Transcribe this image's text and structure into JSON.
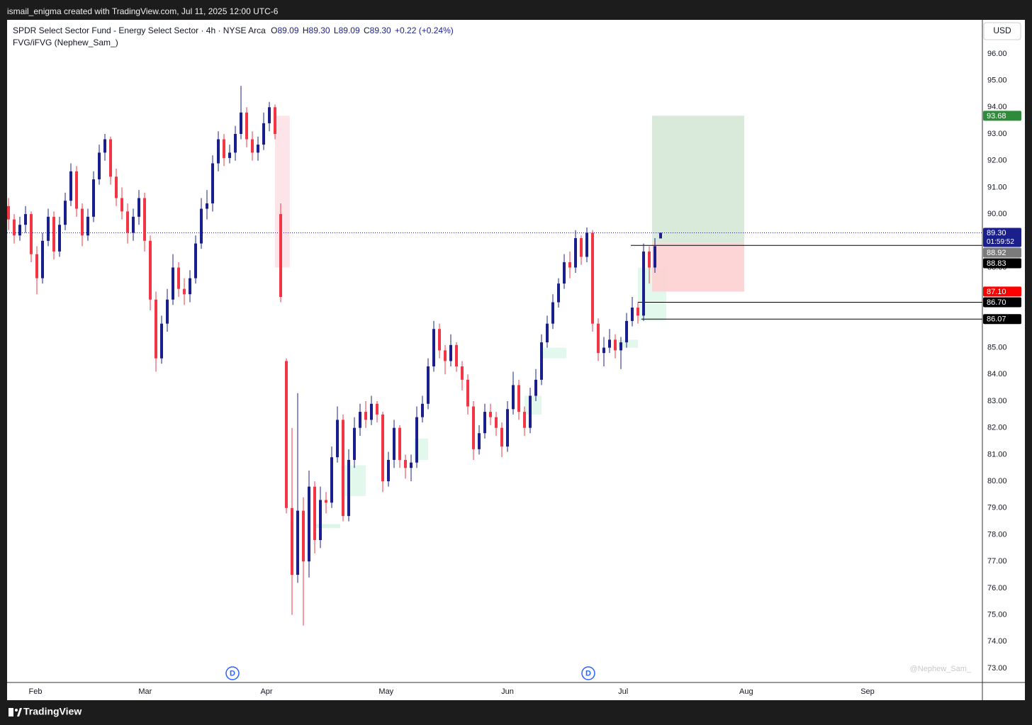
{
  "topbar": {
    "text": "ismail_enigma created with TradingView.com, Jul 11, 2025 12:00 UTC-6"
  },
  "footer": {
    "brand": "TradingView"
  },
  "chart_data": {
    "type": "candlestick",
    "title": "SPDR Select Sector Fund - Energy Select Sector · 4h · NYSE Arca",
    "ohlc_names": [
      "O",
      "H",
      "L",
      "C"
    ],
    "ohlc_values": [
      "89.09",
      "89.30",
      "89.09",
      "89.30"
    ],
    "change": "+0.22 (+0.24%)",
    "indicator": "FVG/iFVG (Nephew_Sam_)",
    "currency": "USD",
    "watermark": "@Nephew_Sam_",
    "up_color": "#1a1f8c",
    "down_color": "#f23645",
    "open": [
      90.3,
      89.8,
      89.2,
      89.6,
      90.0,
      88.5,
      87.6,
      89.0,
      89.9,
      88.6,
      89.6,
      90.5,
      91.6,
      90.2,
      89.2,
      89.9,
      91.3,
      92.3,
      92.8,
      91.4,
      90.6,
      90.1,
      89.3,
      89.9,
      90.6,
      89.0,
      86.8,
      84.6,
      85.9,
      86.8,
      88.0,
      87.2,
      87.0,
      87.6,
      88.9,
      90.2,
      90.4,
      91.9,
      92.8,
      92.1,
      92.3,
      93.0,
      93.8,
      92.8,
      92.3,
      92.6,
      93.4,
      94.0,
      90.0,
      84.5,
      79.0,
      76.5,
      78.9,
      77.0,
      79.8,
      77.8,
      79.3,
      79.2,
      80.9,
      82.3,
      78.7,
      80.8,
      82.0,
      82.6,
      82.3,
      82.9,
      82.5,
      80.0,
      80.8,
      82.0,
      80.8,
      80.5,
      80.7,
      82.4,
      82.9,
      84.3,
      85.7,
      84.9,
      84.5,
      85.1,
      84.3,
      83.8,
      82.8,
      81.2,
      81.8,
      82.6,
      82.4,
      82.0,
      81.3,
      82.7,
      83.6,
      82.6,
      82.0,
      83.2,
      83.8,
      85.2,
      85.9,
      86.7,
      87.4,
      88.2,
      88.0,
      89.1,
      88.4,
      89.3,
      85.9,
      84.8,
      85.0,
      85.3,
      84.9,
      85.2,
      86.0,
      86.5,
      86.2,
      88.6,
      88.0,
      89.09
    ],
    "high": [
      90.6,
      90.0,
      89.9,
      90.3,
      90.1,
      88.8,
      89.3,
      90.2,
      90.1,
      89.9,
      90.8,
      91.9,
      91.8,
      90.4,
      90.2,
      91.6,
      92.6,
      93.0,
      92.9,
      91.7,
      91.0,
      90.4,
      90.2,
      90.9,
      90.8,
      89.2,
      87.1,
      86.2,
      87.2,
      88.5,
      88.2,
      87.6,
      87.9,
      89.2,
      90.6,
      90.9,
      92.2,
      93.1,
      93.0,
      92.6,
      93.3,
      94.8,
      94.0,
      93.1,
      92.9,
      93.8,
      94.2,
      94.1,
      90.4,
      84.6,
      82.0,
      83.3,
      79.4,
      80.4,
      80.0,
      79.8,
      79.6,
      81.3,
      82.8,
      82.5,
      81.2,
      82.4,
      82.9,
      83.0,
      83.2,
      83.0,
      82.6,
      81.1,
      82.3,
      82.1,
      81.0,
      81.0,
      82.8,
      83.2,
      84.6,
      86.0,
      85.9,
      85.1,
      85.5,
      85.2,
      84.5,
      84.0,
      83.0,
      82.1,
      82.9,
      82.9,
      82.6,
      82.2,
      83.0,
      84.1,
      83.8,
      82.8,
      83.5,
      84.2,
      85.5,
      86.2,
      87.0,
      87.6,
      88.5,
      88.6,
      89.4,
      89.2,
      89.5,
      89.4,
      86.1,
      85.4,
      85.7,
      85.5,
      85.4,
      86.3,
      86.9,
      86.7,
      88.9,
      88.8,
      89.1,
      89.3
    ],
    "low": [
      89.4,
      88.9,
      89.0,
      89.3,
      88.2,
      87.0,
      87.4,
      88.8,
      88.3,
      88.4,
      89.4,
      90.3,
      89.9,
      88.8,
      89.0,
      89.7,
      91.1,
      92.0,
      91.1,
      90.3,
      89.8,
      88.9,
      89.0,
      89.6,
      88.6,
      86.4,
      84.1,
      84.4,
      85.6,
      86.6,
      86.9,
      86.6,
      86.7,
      87.4,
      88.7,
      89.8,
      90.1,
      91.6,
      91.8,
      91.9,
      92.0,
      92.8,
      92.5,
      92.0,
      92.0,
      92.4,
      93.1,
      92.8,
      86.7,
      78.8,
      75.0,
      76.2,
      74.6,
      76.4,
      77.3,
      77.5,
      78.8,
      79.0,
      80.7,
      78.5,
      78.5,
      80.5,
      81.7,
      82.0,
      82.1,
      82.2,
      79.6,
      79.8,
      80.5,
      80.5,
      80.1,
      80.0,
      80.5,
      82.2,
      82.7,
      84.1,
      84.6,
      84.0,
      84.3,
      84.1,
      83.4,
      82.5,
      80.8,
      81.0,
      81.6,
      82.1,
      81.7,
      80.9,
      81.1,
      82.5,
      82.3,
      81.7,
      81.8,
      83.0,
      83.6,
      85.0,
      85.7,
      86.5,
      87.2,
      87.6,
      87.8,
      88.1,
      88.2,
      85.6,
      84.5,
      84.3,
      84.8,
      84.6,
      84.2,
      85.0,
      85.8,
      85.9,
      86.0,
      87.4,
      87.8,
      89.09
    ],
    "close": [
      89.8,
      89.2,
      89.6,
      90.0,
      88.5,
      87.6,
      89.0,
      89.9,
      88.6,
      89.6,
      90.5,
      91.6,
      90.2,
      89.2,
      89.9,
      91.3,
      92.3,
      92.8,
      91.4,
      90.6,
      90.1,
      89.3,
      89.9,
      90.6,
      89.0,
      86.8,
      84.6,
      85.9,
      86.8,
      88.0,
      87.2,
      87.0,
      87.6,
      88.9,
      90.2,
      90.4,
      91.9,
      92.8,
      92.1,
      92.3,
      93.0,
      93.8,
      92.8,
      92.3,
      92.6,
      93.4,
      94.0,
      93.0,
      86.9,
      79.0,
      76.5,
      78.9,
      77.0,
      79.8,
      77.8,
      79.3,
      79.2,
      80.9,
      82.3,
      78.7,
      80.8,
      82.0,
      82.6,
      82.3,
      82.9,
      82.5,
      80.0,
      80.8,
      82.0,
      80.8,
      80.5,
      80.7,
      82.4,
      82.9,
      84.3,
      85.7,
      84.9,
      84.5,
      85.1,
      84.3,
      83.8,
      82.8,
      81.2,
      81.8,
      82.6,
      82.4,
      82.0,
      81.3,
      82.7,
      83.6,
      82.6,
      82.0,
      83.2,
      83.8,
      85.2,
      85.9,
      86.7,
      87.4,
      88.2,
      88.0,
      89.1,
      88.4,
      89.3,
      85.9,
      84.8,
      85.0,
      85.3,
      84.9,
      85.2,
      86.0,
      86.5,
      86.2,
      88.6,
      88.0,
      88.8,
      89.3
    ],
    "xlim": [
      -0.25,
      171.75
    ],
    "xticks": [
      {
        "value": 4.75,
        "label": "Feb"
      },
      {
        "value": 24.1,
        "label": "Mar"
      },
      {
        "value": 45.5,
        "label": "Apr"
      },
      {
        "value": 66.6,
        "label": "May"
      },
      {
        "value": 88,
        "label": "Jun"
      },
      {
        "value": 108.4,
        "label": "Jul"
      },
      {
        "value": 130.1,
        "label": "Aug"
      },
      {
        "value": 151.5,
        "label": "Sep"
      }
    ],
    "ylim": [
      72.47,
      97.27
    ],
    "yticks": [
      {
        "value": 96,
        "label": "96.00"
      },
      {
        "value": 95,
        "label": "95.00"
      },
      {
        "value": 94,
        "label": "94.00"
      },
      {
        "value": 93,
        "label": "93.00"
      },
      {
        "value": 92,
        "label": "92.00"
      },
      {
        "value": 91,
        "label": "91.00"
      },
      {
        "value": 90,
        "label": "90.00"
      },
      {
        "value": 89,
        "label": "89.00"
      },
      {
        "value": 88,
        "label": "88.00"
      },
      {
        "value": 87,
        "label": "87.00"
      },
      {
        "value": 86,
        "label": "86.00"
      },
      {
        "value": 85,
        "label": "85.00"
      },
      {
        "value": 84,
        "label": "84.00"
      },
      {
        "value": 83,
        "label": "83.00"
      },
      {
        "value": 82,
        "label": "82.00"
      },
      {
        "value": 81,
        "label": "81.00"
      },
      {
        "value": 80,
        "label": "80.00"
      },
      {
        "value": 79,
        "label": "79.00"
      },
      {
        "value": 78,
        "label": "78.00"
      },
      {
        "value": 77,
        "label": "77.00"
      },
      {
        "value": 76,
        "label": "76.00"
      },
      {
        "value": 75,
        "label": "75.00"
      },
      {
        "value": 74,
        "label": "74.00"
      },
      {
        "value": 73,
        "label": "73.00"
      }
    ],
    "last_price_line": {
      "value": 89.3,
      "color": "#1a1f8c"
    },
    "fvg_zones": [
      {
        "start": 47,
        "end": 49.6,
        "top": 93.68,
        "bottom": 88.0,
        "color": "#fde4e8"
      },
      {
        "start": 54,
        "end": 58.5,
        "top": 78.4,
        "bottom": 78.25,
        "color": "#dcf5e8"
      },
      {
        "start": 58.6,
        "end": 63,
        "top": 80.6,
        "bottom": 79.45,
        "color": "#e3f8ec"
      },
      {
        "start": 71.5,
        "end": 74,
        "top": 81.6,
        "bottom": 80.8,
        "color": "#e3f8ec"
      },
      {
        "start": 91,
        "end": 94,
        "top": 83.2,
        "bottom": 82.5,
        "color": "#e3f8ec"
      },
      {
        "start": 94,
        "end": 98.4,
        "top": 85.0,
        "bottom": 84.6,
        "color": "#e3f8ec"
      },
      {
        "start": 107.5,
        "end": 111,
        "top": 85.3,
        "bottom": 85.0,
        "color": "#e3f8ec"
      },
      {
        "start": 111,
        "end": 116,
        "top": 88.0,
        "bottom": 86.0,
        "color": "#e3f8ec"
      }
    ],
    "position": {
      "start": 113.5,
      "end": 129.75,
      "target": 93.68,
      "entry": 88.92,
      "stop": 87.1,
      "profit_color": "#d5e8d6",
      "loss_color": "#fdd0d2"
    },
    "rays": [
      {
        "start": 109.75,
        "value": 88.83
      },
      {
        "start": 111,
        "value": 86.7
      },
      {
        "start": 111.6,
        "value": 86.07
      }
    ],
    "price_badges": [
      {
        "value": 93.68,
        "color": "#2e8b3a"
      },
      {
        "value": 89.3,
        "label": "89.30",
        "color": "#1a1f8c",
        "countdown": "01:59:52"
      },
      {
        "value": 88.92,
        "color": "#7b7b7b"
      },
      {
        "value": 88.83,
        "color": "#000000"
      },
      {
        "value": 87.1,
        "label": "87.10",
        "color": "#ff0000"
      },
      {
        "value": 86.7,
        "label": "86.70",
        "color": "#000000"
      },
      {
        "value": 86.07,
        "color": "#000000"
      }
    ],
    "events": [
      {
        "x": 39.5,
        "label": "D"
      },
      {
        "x": 102.25,
        "label": "D"
      }
    ]
  }
}
